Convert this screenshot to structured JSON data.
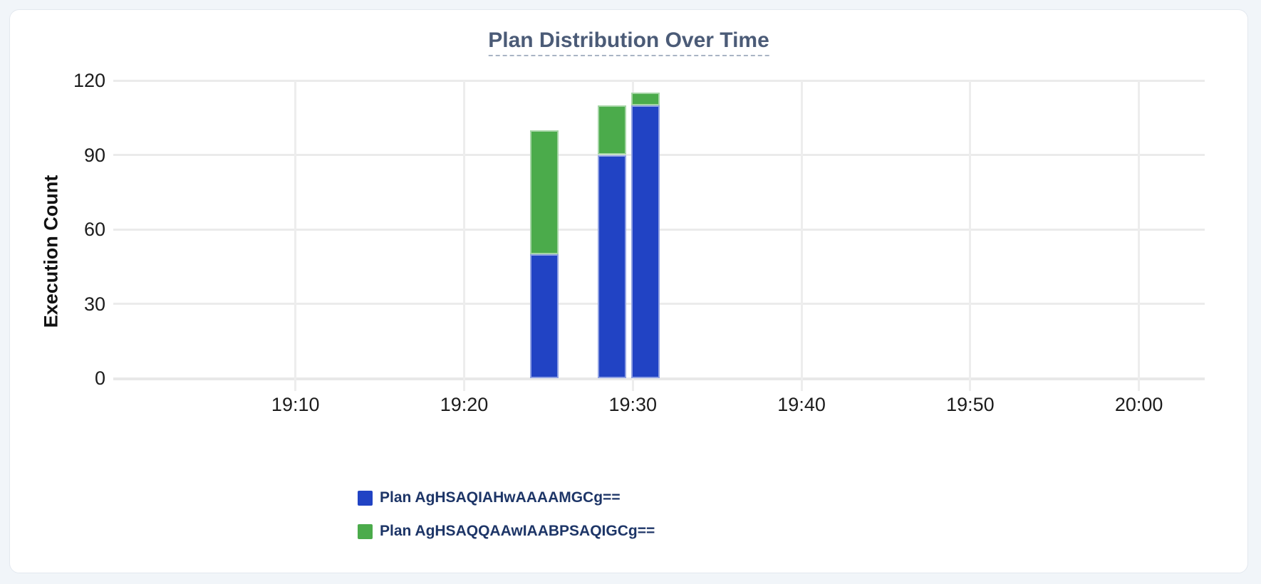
{
  "colors": {
    "page_background": "#f1f5f9",
    "card_background": "#ffffff",
    "card_border": "#e3e8ef",
    "gridline": "#ebebeb",
    "axis_text": "#1c1c1c",
    "title_text": "#4b5b77",
    "title_underline": "#a9b4c4",
    "legend_text": "#1d3567",
    "series_blue": "#2143c4",
    "series_green": "#4bab4b"
  },
  "chart_data": {
    "type": "bar",
    "stacked": true,
    "title": "Plan Distribution Over Time",
    "xlabel": "",
    "ylabel": "Execution Count",
    "ylim": [
      0,
      120
    ],
    "yticks": [
      0,
      30,
      60,
      90,
      120
    ],
    "grid": true,
    "legend_position": "bottom-left",
    "x_axis": {
      "unit": "minutes after 19:00",
      "domain": [
        -0.8,
        63.9
      ],
      "ticks": [
        {
          "t": 10,
          "label": "19:10"
        },
        {
          "t": 20,
          "label": "19:20"
        },
        {
          "t": 30,
          "label": "19:30"
        },
        {
          "t": 40,
          "label": "19:40"
        },
        {
          "t": 50,
          "label": "19:50"
        },
        {
          "t": 60,
          "label": "20:00"
        }
      ]
    },
    "bar_width_minutes": 1.7,
    "bars": [
      {
        "time_label": "19:24",
        "start_minute": 23.9
      },
      {
        "time_label": "19:28",
        "start_minute": 27.9
      },
      {
        "time_label": "19:30",
        "start_minute": 29.9
      }
    ],
    "series": [
      {
        "name": "Plan AgHSAQIAHwAAAAMGCg==",
        "color": "#2143c4",
        "values": [
          50,
          90,
          110
        ]
      },
      {
        "name": "Plan AgHSAQQAAwIAABPSAQIGCg==",
        "color": "#4bab4b",
        "values": [
          50,
          20,
          5
        ]
      }
    ]
  }
}
